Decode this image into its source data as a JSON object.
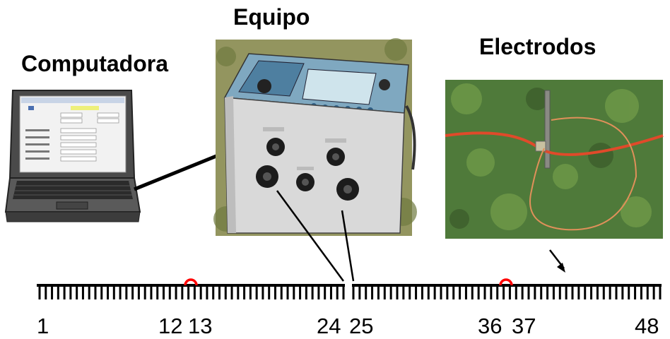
{
  "labels": {
    "equipo": "Equipo",
    "computadora": "Computadora",
    "electrodos": "Electrodos"
  },
  "electrode_numbers": [
    "1",
    "12",
    "13",
    "24",
    "25",
    "36",
    "37",
    "48"
  ],
  "colors": {
    "text": "#000000",
    "highlight": "#ff0000",
    "cable": "#e04a2a"
  },
  "icons": [
    "laptop-icon",
    "resistivity-meter-photo",
    "electrode-photo",
    "arrow-icon"
  ]
}
